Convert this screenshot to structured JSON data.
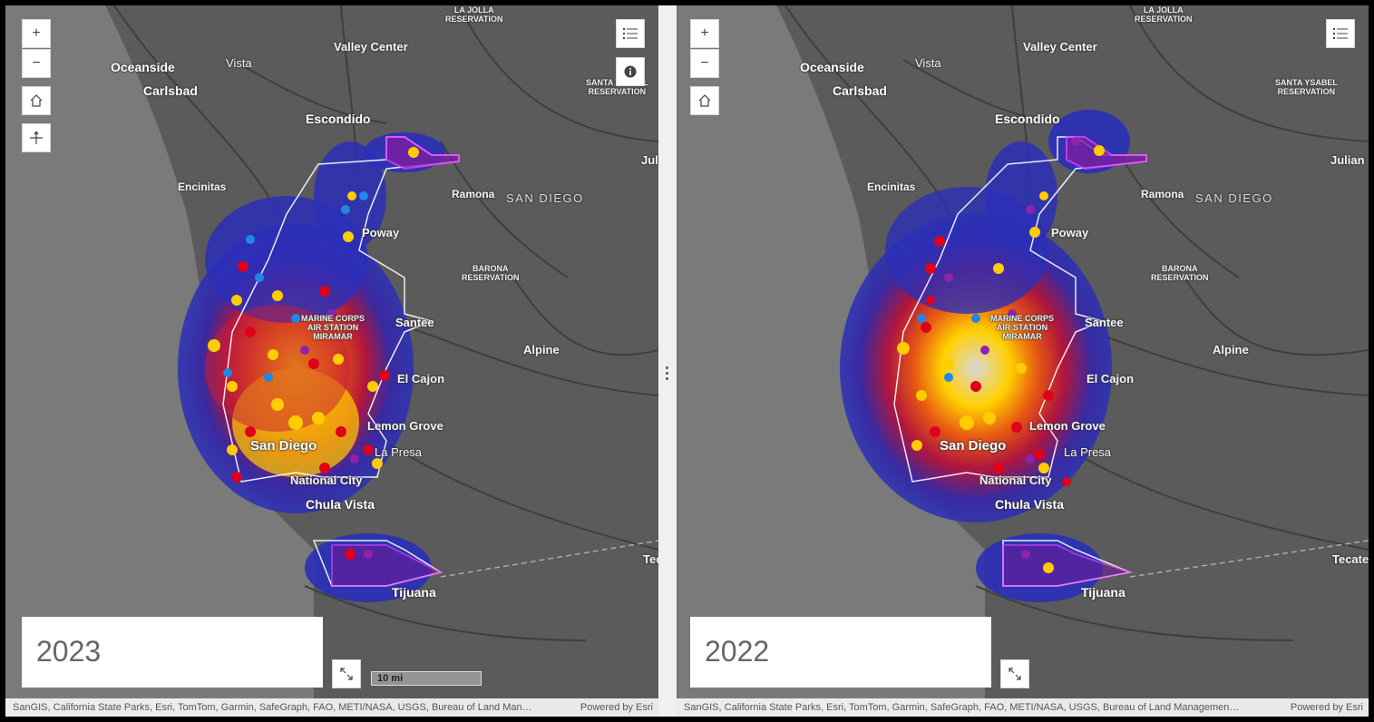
{
  "left_pane": {
    "year": "2023",
    "labels": {
      "la_jolla_reservation": "LA JOLLA\nRESERVATION",
      "valley_center": "Valley Center",
      "oceanside": "Oceanside",
      "vista": "Vista",
      "carlsbad": "Carlsbad",
      "santa_ysabel": "SANTA YSABEL\nRESERVATION",
      "escondido": "Escondido",
      "julian": "Julian",
      "encinitas": "Encinitas",
      "ramona": "Ramona",
      "san_diego_region": "SAN DIEGO",
      "poway": "Poway",
      "barona": "BARONA\nRESERVATION",
      "miramar": "MARINE CORPS\nAIR STATION\nMIRAMAR",
      "santee": "Santee",
      "alpine": "Alpine",
      "el_cajon": "El Cajon",
      "lemon_grove": "Lemon Grove",
      "san_diego_city": "San Diego",
      "la_presa": "La Presa",
      "national_city": "National City",
      "chula_vista": "Chula Vista",
      "tecate": "Tecate",
      "tijuana": "Tijuana"
    },
    "scale_label": "10 mi",
    "attribution": "SanGIS, California State Parks, Esri, TomTom, Garmin, SafeGraph, FAO, METI/NASA, USGS, Bureau of Land Man…",
    "powered_by": "Powered by Esri"
  },
  "right_pane": {
    "year": "2022",
    "attribution": "SanGIS, California State Parks, Esri, TomTom, Garmin, SafeGraph, FAO, METI/NASA, USGS, Bureau of Land Managemen…",
    "powered_by": "Powered by Esri"
  },
  "controls": {
    "zoom_in": "+",
    "zoom_out": "−"
  },
  "colors": {
    "basemap": "#5b5b5b",
    "boundary_highlight": "#e040fb",
    "heat_low": "#2b2fb8",
    "heat_mid": "#c41e3a",
    "heat_high": "#ffd000",
    "dot_yellow": "#ffcc00",
    "dot_red": "#e0001b",
    "icon_blue": "#1e88e5",
    "icon_purple": "#8e24aa"
  }
}
